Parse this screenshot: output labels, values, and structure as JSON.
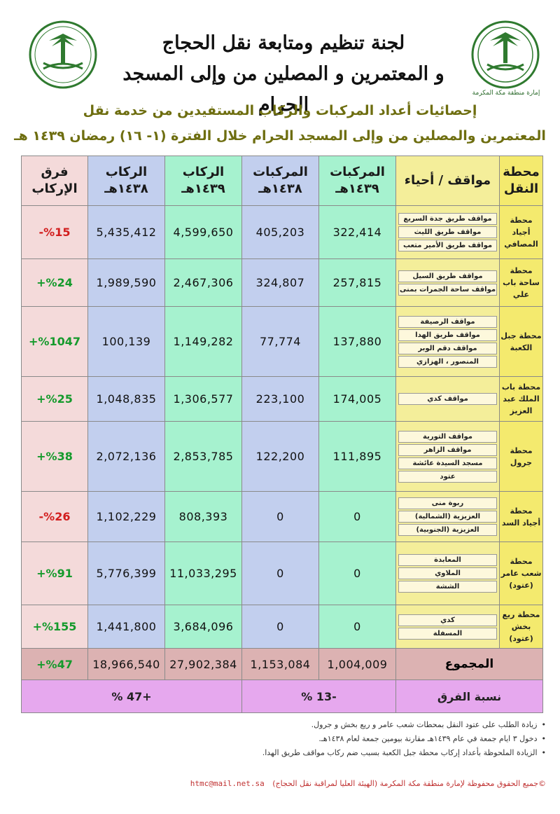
{
  "header": {
    "title_line1": "لجنة تنظيم ومتابعة نقل الحجاج",
    "title_line2": "و المعتمرين و المصلين من وإلى المسجد الحرام",
    "emblem_caption": "إمارة منطقة مكة المكرمة",
    "subtitle_line1": "إحصائيات أعداد المركبات والركاب المستفيدين من خدمة نقل",
    "subtitle_line2": "المعتمرين والمصلين من وإلى المسجد الحرام خلال الفترة (١- ١٦) رمضان ١٤٣٩ هـ"
  },
  "table": {
    "headers": {
      "station": "محطة النقل",
      "parking": "مواقف / أحياء",
      "vehicles_1439": "المركبات ١٤٣٩هـ",
      "vehicles_1438": "المركبات ١٤٣٨هـ",
      "passengers_1439": "الركاب ١٤٣٩هـ",
      "passengers_1438": "الركاب ١٤٣٨هـ",
      "diff": "فرق الإركاب"
    },
    "rows": [
      {
        "station": "محطة أجياد المصافي",
        "lots": [
          "مواقف طريق جدة السريع",
          "مواقف طريق الليث",
          "مواقف طريق الأمير متعب"
        ],
        "v39": "322,414",
        "v38": "405,203",
        "p39": "4,599,650",
        "p38": "5,435,412",
        "diff": "%15-",
        "sign": "neg"
      },
      {
        "station": "محطة ساحة باب علي",
        "lots": [
          "مواقف طريق السيل",
          "مواقف ساحة الجمرات بمنى"
        ],
        "v39": "257,815",
        "v38": "324,807",
        "p39": "2,467,306",
        "p38": "1,989,590",
        "diff": "%24+",
        "sign": "pos"
      },
      {
        "station": "محطة جبل الكعبة",
        "lots": [
          "مواقف الرصيفة",
          "مواقف طريق الهدا",
          "مواقف دقم الوبر",
          "المنصور ، الهزازي"
        ],
        "v39": "137,880",
        "v38": "77,774",
        "p39": "1,149,282",
        "p38": "100,139",
        "diff": "%1047+",
        "sign": "pos"
      },
      {
        "station": "محطة باب الملك عبد العزيز",
        "lots": [
          "مواقف كدي"
        ],
        "v39": "174,005",
        "v38": "223,100",
        "p39": "1,306,577",
        "p38": "1,048,835",
        "diff": "%25+",
        "sign": "pos"
      },
      {
        "station": "محطة جرول",
        "lots": [
          "مواقف التورية",
          "مواقف الزاهر",
          "مسجد السيدة عائشة",
          "عتود"
        ],
        "v39": "111,895",
        "v38": "122,200",
        "p39": "2,853,785",
        "p38": "2,072,136",
        "diff": "%38+",
        "sign": "pos"
      },
      {
        "station": "محطة أجياد السد",
        "lots": [
          "ربوة منى",
          "العزيزية (الشمالية)",
          "العزيزية (الجنوبية)"
        ],
        "v39": "0",
        "v38": "0",
        "p39": "808,393",
        "p38": "1,102,229",
        "diff": "%26-",
        "sign": "neg"
      },
      {
        "station": "محطة شعب عامر (عتود)",
        "lots": [
          "المعابدة",
          "الملاوي",
          "الششة"
        ],
        "v39": "0",
        "v38": "0",
        "p39": "11,033,295",
        "p38": "5,776,399",
        "diff": "%91+",
        "sign": "pos"
      },
      {
        "station": "محطة ريع بخش (عتود)",
        "lots": [
          "كدي",
          "المسفلة"
        ],
        "v39": "0",
        "v38": "0",
        "p39": "3,684,096",
        "p38": "1,441,800",
        "diff": "%155+",
        "sign": "pos"
      }
    ],
    "total": {
      "label": "المجموع",
      "v39": "1,004,009",
      "v38": "1,153,084",
      "p39": "27,902,384",
      "p38": "18,966,540",
      "diff": "%47+"
    },
    "ratio": {
      "label": "نسبة الفرق",
      "vehicles": "-13 %",
      "passengers": "+47 %"
    }
  },
  "notes": [
    "زيادة الطلب على عتود النقل بمحطات شعب عامر و ريع بخش و جرول.",
    "دخول ٣ ايام جمعة في عام ١٤٣٩هـ مقارنة بيومين جمعة لعام ١٤٣٨هـ.",
    "الزيادة الملحوظة بأعداد إركاب محطة جبل الكعبة بسبب ضم ركاب مواقف طريق الهدا."
  ],
  "footer": {
    "rights": "©جميع الحقوق محفوظة لإمارة منطقة مكة المكرمة (الهيئة العليا لمراقبة نقل الحجاج)",
    "email": "htmc@mail.net.sa"
  },
  "colors": {
    "station": "#f4ea6e",
    "vehicles": "#a6f2cf",
    "passengers_old": "#c2cfee",
    "diff": "#f4dada",
    "total": "#dcb2b2",
    "ratio": "#e6a8ee",
    "negative": "#d21e1e",
    "positive": "#159a2c"
  }
}
